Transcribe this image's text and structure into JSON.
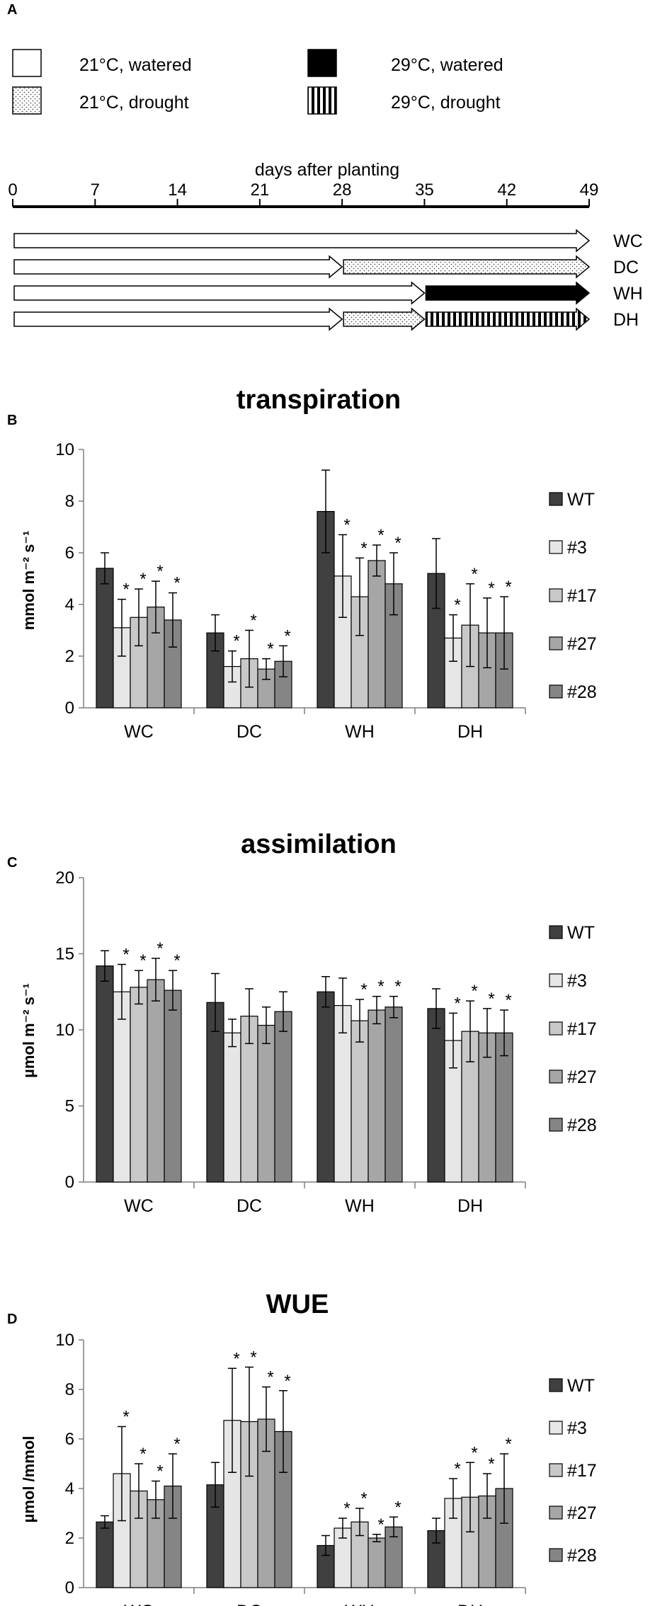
{
  "panels": {
    "a": "A",
    "b": "B",
    "c": "C",
    "d": "D"
  },
  "legend": {
    "c21w": "21°C, watered",
    "c21d": "21°C, drought",
    "c29w": "29°C, watered",
    "c29d": "29°C, drought"
  },
  "timeline": {
    "title": "days after planting",
    "ticks": [
      0,
      7,
      14,
      21,
      28,
      35,
      42,
      49
    ],
    "rows": [
      {
        "label": "WC",
        "segments": [
          {
            "start": 0,
            "end": 49,
            "pattern": "c21w"
          }
        ]
      },
      {
        "label": "DC",
        "segments": [
          {
            "start": 0,
            "end": 28,
            "pattern": "c21w"
          },
          {
            "start": 28,
            "end": 49,
            "pattern": "c21d"
          }
        ]
      },
      {
        "label": "WH",
        "segments": [
          {
            "start": 0,
            "end": 35,
            "pattern": "c21w"
          },
          {
            "start": 35,
            "end": 49,
            "pattern": "c29w"
          }
        ]
      },
      {
        "label": "DH",
        "segments": [
          {
            "start": 0,
            "end": 28,
            "pattern": "c21w"
          },
          {
            "start": 28,
            "end": 35,
            "pattern": "c21d"
          },
          {
            "start": 35,
            "end": 49,
            "pattern": "c29d"
          }
        ]
      }
    ]
  },
  "colors": {
    "WT": "#404040",
    "#3": "#e6e6e6",
    "#17": "#c8c8c8",
    "#27": "#a6a6a6",
    "#28": "#858585"
  },
  "chart_data": [
    {
      "type": "bar",
      "title": "transpiration",
      "ylabel": "mmol m⁻² s⁻¹",
      "ylim": [
        0,
        10
      ],
      "yticks": [
        0,
        2,
        4,
        6,
        8,
        10
      ],
      "categories": [
        "WC",
        "DC",
        "WH",
        "DH"
      ],
      "series": [
        {
          "name": "WT",
          "values": [
            5.4,
            2.9,
            7.6,
            5.2
          ],
          "errors": [
            0.6,
            0.7,
            1.6,
            1.35
          ],
          "sig": [
            false,
            false,
            false,
            false
          ]
        },
        {
          "name": "#3",
          "values": [
            3.1,
            1.6,
            5.1,
            2.7
          ],
          "errors": [
            1.1,
            0.6,
            1.6,
            0.9
          ],
          "sig": [
            true,
            true,
            true,
            true
          ]
        },
        {
          "name": "#17",
          "values": [
            3.5,
            1.9,
            4.3,
            3.2
          ],
          "errors": [
            1.1,
            1.1,
            1.5,
            1.6
          ],
          "sig": [
            true,
            true,
            true,
            true
          ]
        },
        {
          "name": "#27",
          "values": [
            3.9,
            1.5,
            5.7,
            2.9
          ],
          "errors": [
            1.0,
            0.4,
            0.6,
            1.35
          ],
          "sig": [
            true,
            true,
            true,
            true
          ]
        },
        {
          "name": "#28",
          "values": [
            3.4,
            1.8,
            4.8,
            2.9
          ],
          "errors": [
            1.05,
            0.6,
            1.2,
            1.4
          ],
          "sig": [
            true,
            true,
            true,
            true
          ]
        }
      ]
    },
    {
      "type": "bar",
      "title": "assimilation",
      "ylabel": "µmol m⁻² s⁻¹",
      "ylim": [
        0,
        20
      ],
      "yticks": [
        0,
        5,
        10,
        15,
        20
      ],
      "categories": [
        "WC",
        "DC",
        "WH",
        "DH"
      ],
      "series": [
        {
          "name": "WT",
          "values": [
            14.2,
            11.8,
            12.5,
            11.4
          ],
          "errors": [
            1.0,
            1.9,
            1.0,
            1.3
          ],
          "sig": [
            false,
            false,
            false,
            false
          ]
        },
        {
          "name": "#3",
          "values": [
            12.5,
            9.8,
            11.6,
            9.3
          ],
          "errors": [
            1.8,
            0.9,
            1.8,
            1.8
          ],
          "sig": [
            true,
            false,
            false,
            true
          ]
        },
        {
          "name": "#17",
          "values": [
            12.8,
            10.9,
            10.6,
            9.9
          ],
          "errors": [
            1.1,
            1.8,
            1.4,
            2.0
          ],
          "sig": [
            true,
            false,
            true,
            true
          ]
        },
        {
          "name": "#27",
          "values": [
            13.3,
            10.3,
            11.3,
            9.8
          ],
          "errors": [
            1.4,
            1.2,
            0.9,
            1.6
          ],
          "sig": [
            true,
            false,
            true,
            true
          ]
        },
        {
          "name": "#28",
          "values": [
            12.6,
            11.2,
            11.5,
            9.8
          ],
          "errors": [
            1.3,
            1.3,
            0.7,
            1.5
          ],
          "sig": [
            true,
            false,
            true,
            true
          ]
        }
      ]
    },
    {
      "type": "bar",
      "title": "WUE",
      "ylabel": "µmol /mmol",
      "ylim": [
        0,
        10
      ],
      "yticks": [
        0,
        2,
        4,
        6,
        8,
        10
      ],
      "categories": [
        "WC",
        "DC",
        "WH",
        "DH"
      ],
      "series": [
        {
          "name": "WT",
          "values": [
            2.65,
            4.15,
            1.7,
            2.3
          ],
          "errors": [
            0.25,
            0.9,
            0.4,
            0.5
          ],
          "sig": [
            false,
            false,
            false,
            false
          ]
        },
        {
          "name": "#3",
          "values": [
            4.6,
            6.75,
            2.4,
            3.6
          ],
          "errors": [
            1.9,
            2.1,
            0.4,
            0.8
          ],
          "sig": [
            true,
            true,
            true,
            true
          ]
        },
        {
          "name": "#17",
          "values": [
            3.9,
            6.7,
            2.65,
            3.65
          ],
          "errors": [
            1.1,
            2.2,
            0.55,
            1.4
          ],
          "sig": [
            true,
            true,
            true,
            true
          ]
        },
        {
          "name": "#27",
          "values": [
            3.55,
            6.8,
            2.0,
            3.7
          ],
          "errors": [
            0.75,
            1.3,
            0.15,
            0.9
          ],
          "sig": [
            true,
            true,
            true,
            true
          ]
        },
        {
          "name": "#28",
          "values": [
            4.1,
            6.3,
            2.45,
            4.0
          ],
          "errors": [
            1.3,
            1.65,
            0.4,
            1.4
          ],
          "sig": [
            true,
            true,
            true,
            true
          ]
        }
      ]
    }
  ]
}
